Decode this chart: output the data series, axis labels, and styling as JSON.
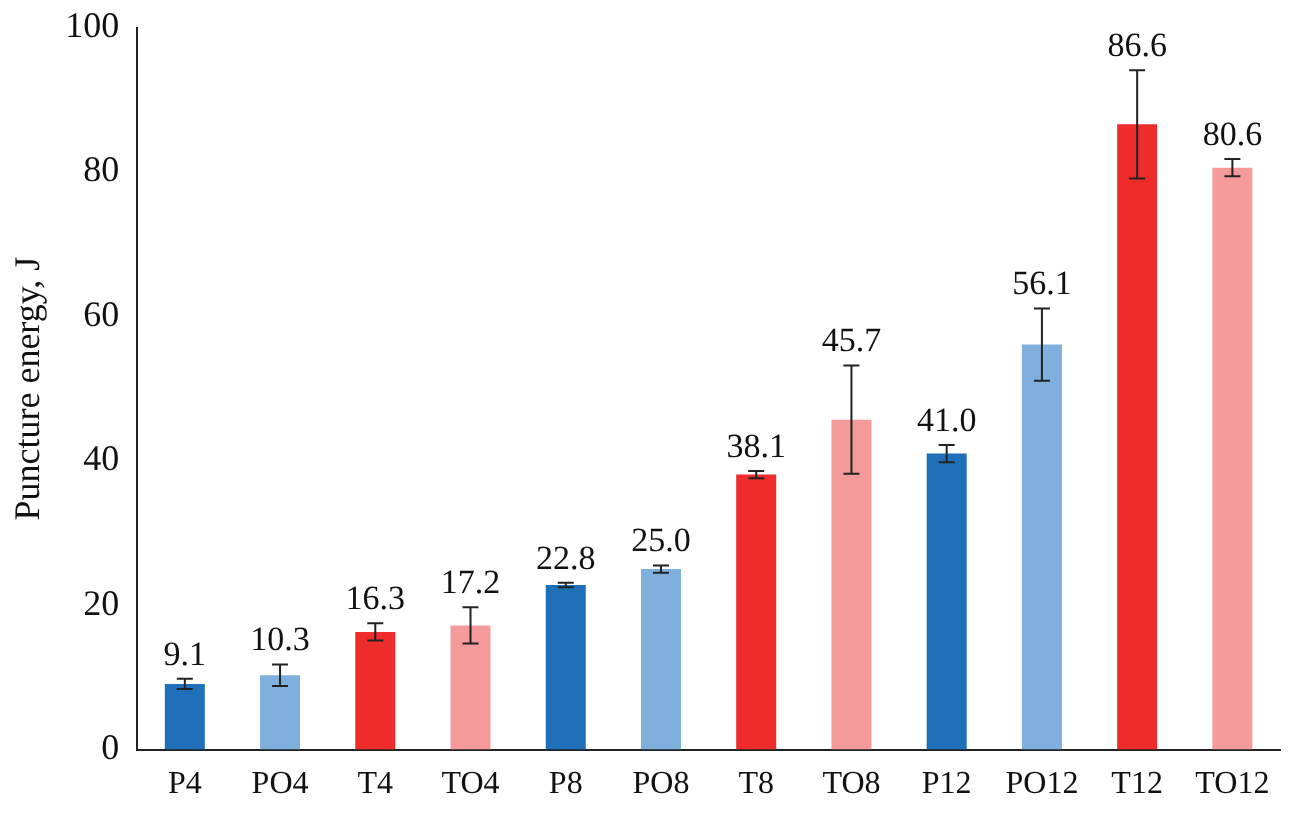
{
  "chart_data": {
    "type": "bar",
    "ylabel": "Puncture energy, J",
    "categories": [
      "P4",
      "PO4",
      "T4",
      "TO4",
      "P8",
      "PO8",
      "T8",
      "TO8",
      "P12",
      "PO12",
      "T12",
      "TO12"
    ],
    "values": [
      9.1,
      10.3,
      16.3,
      17.2,
      22.8,
      25.0,
      38.1,
      45.7,
      41.0,
      56.1,
      86.6,
      80.6
    ],
    "colors": [
      "#1f70b8",
      "#7fb0dd",
      "#ee2c2c",
      "#f59a9a",
      "#1f70b8",
      "#7fb0dd",
      "#ee2c2c",
      "#f59a9a",
      "#1f70b8",
      "#7fb0dd",
      "#ee2c2c",
      "#f59a9a"
    ],
    "errors": [
      0.7,
      1.5,
      1.2,
      2.5,
      0.3,
      0.5,
      0.5,
      7.5,
      1.2,
      5,
      7.5,
      1.2
    ],
    "value_labels": [
      "9.1",
      "10.3",
      "16.3",
      "17.2",
      "22.8",
      "25.0",
      "38.1",
      "45.7",
      "41.0",
      "56.1",
      "86.6",
      "80.6"
    ],
    "ylim": [
      0,
      100
    ],
    "yticks": [
      0,
      20,
      40,
      60,
      80,
      100
    ],
    "grid": false,
    "legend": false
  }
}
